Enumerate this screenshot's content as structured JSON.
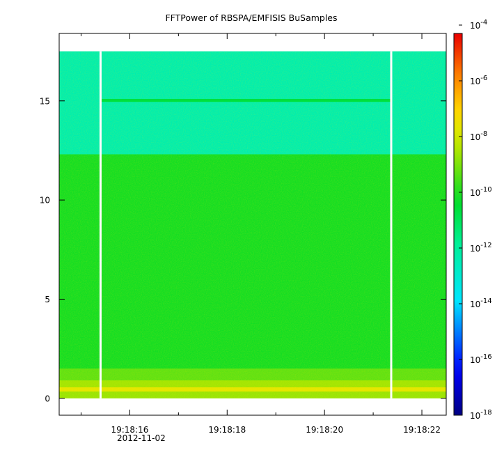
{
  "chart_data": {
    "type": "heatmap",
    "title": "FFTPower of RBSPA/EMFISIS  BuSamples",
    "xlabel": "",
    "ylabel": "",
    "x_date_label": "2012-11-02",
    "x_ticks": [
      {
        "value": 16,
        "label": "19:18:16"
      },
      {
        "value": 18,
        "label": "19:18:18"
      },
      {
        "value": 20,
        "label": "19:18:20"
      },
      {
        "value": 22,
        "label": "19:18:22"
      }
    ],
    "x_minor_ticks": [
      15,
      17,
      19,
      21
    ],
    "xlim": [
      14.55,
      22.5
    ],
    "y_ticks": [
      0,
      5,
      10,
      15
    ],
    "ylim": [
      -0.85,
      18.4
    ],
    "colorbar": {
      "scale": "log",
      "range_exponent": [
        -18,
        -4.3
      ],
      "tick_exponents": [
        -4,
        -6,
        -8,
        -10,
        -12,
        -14,
        -16,
        -18
      ],
      "tick_base": "10"
    },
    "data_gaps_x": [
      15.4,
      21.37
    ],
    "bands": [
      {
        "y_range": [
          0.0,
          0.35
        ],
        "log10_power": -8.7
      },
      {
        "y_range": [
          0.35,
          0.55
        ],
        "log10_power": -7.7
      },
      {
        "y_range": [
          0.55,
          0.9
        ],
        "log10_power": -8.6
      },
      {
        "y_range": [
          0.9,
          1.5
        ],
        "log10_power": -9.3
      },
      {
        "y_range": [
          1.5,
          12.3
        ],
        "log10_power": -10.1
      },
      {
        "y_range": [
          12.3,
          17.5
        ],
        "log10_power": -12.3
      },
      {
        "y_range": [
          14.95,
          15.1
        ],
        "log10_power": -10.6
      }
    ],
    "grid": false
  }
}
